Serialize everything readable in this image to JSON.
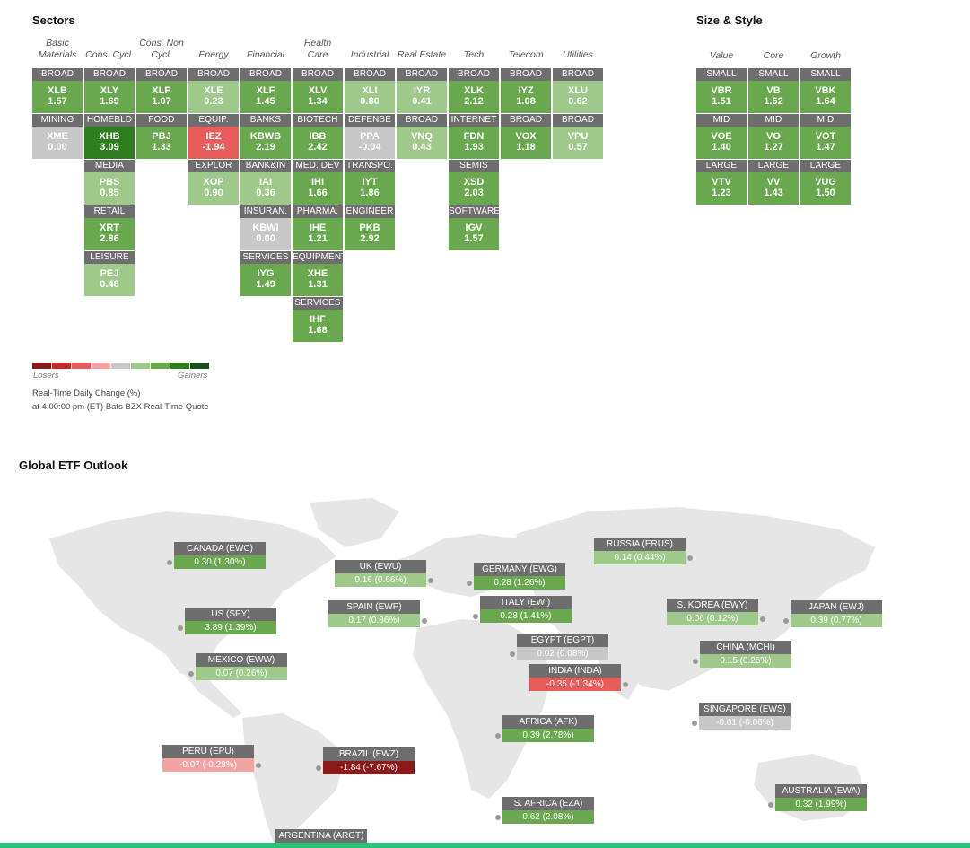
{
  "colors": {
    "dark_red": "#8b1a1a",
    "red": "#e85c5c",
    "light_red": "#f4a3a3",
    "neutral": "#c8c8c8",
    "light_green": "#9ec98a",
    "green": "#6aa84f",
    "dark_green": "#2e7d1e"
  },
  "sectors": {
    "title": "Sectors",
    "columns": [
      "Basic Materials",
      "Cons. Cycl.",
      "Cons. Non Cycl.",
      "Energy",
      "Financial",
      "Health Care",
      "Industrial",
      "Real Estate",
      "Tech",
      "Telecom",
      "Utilities"
    ],
    "tiles": [
      {
        "col": 0,
        "row": 0,
        "label": "BROAD",
        "ticker": "XLB",
        "value": "1.57",
        "color": "green"
      },
      {
        "col": 0,
        "row": 1,
        "label": "MINING",
        "ticker": "XME",
        "value": "0.00",
        "color": "neutral"
      },
      {
        "col": 1,
        "row": 0,
        "label": "BROAD",
        "ticker": "XLY",
        "value": "1.69",
        "color": "green"
      },
      {
        "col": 1,
        "row": 1,
        "label": "HOMEBLD",
        "ticker": "XHB",
        "value": "3.09",
        "color": "dark_green"
      },
      {
        "col": 1,
        "row": 2,
        "label": "MEDIA",
        "ticker": "PBS",
        "value": "0.85",
        "color": "light_green"
      },
      {
        "col": 1,
        "row": 3,
        "label": "RETAIL",
        "ticker": "XRT",
        "value": "2.86",
        "color": "green"
      },
      {
        "col": 1,
        "row": 4,
        "label": "LEISURE",
        "ticker": "PEJ",
        "value": "0.48",
        "color": "light_green"
      },
      {
        "col": 2,
        "row": 0,
        "label": "BROAD",
        "ticker": "XLP",
        "value": "1.07",
        "color": "green"
      },
      {
        "col": 2,
        "row": 1,
        "label": "FOOD",
        "ticker": "PBJ",
        "value": "1.33",
        "color": "green"
      },
      {
        "col": 3,
        "row": 0,
        "label": "BROAD",
        "ticker": "XLE",
        "value": "0.23",
        "color": "light_green"
      },
      {
        "col": 3,
        "row": 1,
        "label": "EQUIP.",
        "ticker": "IEZ",
        "value": "-1.94",
        "color": "red"
      },
      {
        "col": 3,
        "row": 2,
        "label": "EXPLOR",
        "ticker": "XOP",
        "value": "0.90",
        "color": "light_green"
      },
      {
        "col": 4,
        "row": 0,
        "label": "BROAD",
        "ticker": "XLF",
        "value": "1.45",
        "color": "green"
      },
      {
        "col": 4,
        "row": 1,
        "label": "BANKS",
        "ticker": "KBWB",
        "value": "2.19",
        "color": "green"
      },
      {
        "col": 4,
        "row": 2,
        "label": "BANK&IN",
        "ticker": "IAI",
        "value": "0.36",
        "color": "light_green"
      },
      {
        "col": 4,
        "row": 3,
        "label": "INSURAN.",
        "ticker": "KBWI",
        "value": "0.00",
        "color": "neutral"
      },
      {
        "col": 4,
        "row": 4,
        "label": "SERVICES",
        "ticker": "IYG",
        "value": "1.49",
        "color": "green"
      },
      {
        "col": 5,
        "row": 0,
        "label": "BROAD",
        "ticker": "XLV",
        "value": "1.34",
        "color": "green"
      },
      {
        "col": 5,
        "row": 1,
        "label": "BIOTECH",
        "ticker": "IBB",
        "value": "2.42",
        "color": "green"
      },
      {
        "col": 5,
        "row": 2,
        "label": "MED. DEV",
        "ticker": "IHI",
        "value": "1.66",
        "color": "green"
      },
      {
        "col": 5,
        "row": 3,
        "label": "PHARMA.",
        "ticker": "IHE",
        "value": "1.21",
        "color": "green"
      },
      {
        "col": 5,
        "row": 4,
        "label": "EQUIPMENT",
        "ticker": "XHE",
        "value": "1.31",
        "color": "green"
      },
      {
        "col": 5,
        "row": 5,
        "label": "SERVICES",
        "ticker": "IHF",
        "value": "1.68",
        "color": "green"
      },
      {
        "col": 6,
        "row": 0,
        "label": "BROAD",
        "ticker": "XLI",
        "value": "0.80",
        "color": "light_green"
      },
      {
        "col": 6,
        "row": 1,
        "label": "DEFENSE",
        "ticker": "PPA",
        "value": "-0.04",
        "color": "neutral"
      },
      {
        "col": 6,
        "row": 2,
        "label": "TRANSPO.",
        "ticker": "IYT",
        "value": "1.86",
        "color": "green"
      },
      {
        "col": 6,
        "row": 3,
        "label": "ENGINEER",
        "ticker": "PKB",
        "value": "2.92",
        "color": "green"
      },
      {
        "col": 7,
        "row": 0,
        "label": "BROAD",
        "ticker": "IYR",
        "value": "0.41",
        "color": "light_green"
      },
      {
        "col": 7,
        "row": 1,
        "label": "BROAD",
        "ticker": "VNQ",
        "value": "0.43",
        "color": "light_green"
      },
      {
        "col": 8,
        "row": 0,
        "label": "BROAD",
        "ticker": "XLK",
        "value": "2.12",
        "color": "green"
      },
      {
        "col": 8,
        "row": 1,
        "label": "INTERNET",
        "ticker": "FDN",
        "value": "1.93",
        "color": "green"
      },
      {
        "col": 8,
        "row": 2,
        "label": "SEMIS",
        "ticker": "XSD",
        "value": "2.03",
        "color": "green"
      },
      {
        "col": 8,
        "row": 3,
        "label": "SOFTWARE",
        "ticker": "IGV",
        "value": "1.57",
        "color": "green"
      },
      {
        "col": 9,
        "row": 0,
        "label": "BROAD",
        "ticker": "IYZ",
        "value": "1.08",
        "color": "green"
      },
      {
        "col": 9,
        "row": 1,
        "label": "BROAD",
        "ticker": "VOX",
        "value": "1.18",
        "color": "green"
      },
      {
        "col": 10,
        "row": 0,
        "label": "BROAD",
        "ticker": "XLU",
        "value": "0.62",
        "color": "light_green"
      },
      {
        "col": 10,
        "row": 1,
        "label": "BROAD",
        "ticker": "VPU",
        "value": "0.57",
        "color": "light_green"
      }
    ],
    "legend": {
      "colors": [
        "#8b1a1a",
        "#c62828",
        "#e85c5c",
        "#f4a3a3",
        "#c8c8c8",
        "#9ec98a",
        "#6aa84f",
        "#2e7d1e",
        "#1b4d1b"
      ],
      "losers": "Losers",
      "gainers": "Gainers"
    },
    "note_line1": "Real-Time Daily Change (%)",
    "note_line2": "at 4:00:00 pm (ET) Bats BZX Real-Time Quote"
  },
  "size_style": {
    "title": "Size & Style",
    "columns": [
      "Value",
      "Core",
      "Growth"
    ],
    "tiles": [
      {
        "col": 0,
        "row": 0,
        "label": "SMALL",
        "ticker": "VBR",
        "value": "1.51",
        "color": "green"
      },
      {
        "col": 1,
        "row": 0,
        "label": "SMALL",
        "ticker": "VB",
        "value": "1.62",
        "color": "green"
      },
      {
        "col": 2,
        "row": 0,
        "label": "SMALL",
        "ticker": "VBK",
        "value": "1.64",
        "color": "green"
      },
      {
        "col": 0,
        "row": 1,
        "label": "MID",
        "ticker": "VOE",
        "value": "1.40",
        "color": "green"
      },
      {
        "col": 1,
        "row": 1,
        "label": "MID",
        "ticker": "VO",
        "value": "1.27",
        "color": "green"
      },
      {
        "col": 2,
        "row": 1,
        "label": "MID",
        "ticker": "VOT",
        "value": "1.47",
        "color": "green"
      },
      {
        "col": 0,
        "row": 2,
        "label": "LARGE",
        "ticker": "VTV",
        "value": "1.23",
        "color": "green"
      },
      {
        "col": 1,
        "row": 2,
        "label": "LARGE",
        "ticker": "VV",
        "value": "1.43",
        "color": "green"
      },
      {
        "col": 2,
        "row": 2,
        "label": "LARGE",
        "ticker": "VUG",
        "value": "1.50",
        "color": "green"
      }
    ]
  },
  "global": {
    "title": "Global ETF Outlook",
    "markers": [
      {
        "label": "CANADA (EWC)",
        "value": "0.30 (1.30%)",
        "color": "green"
      },
      {
        "label": "US (SPY)",
        "value": "3.89 (1.39%)",
        "color": "green"
      },
      {
        "label": "MEXICO (EWW)",
        "value": "0.07 (0.26%)",
        "color": "light_green"
      },
      {
        "label": "PERU (EPU)",
        "value": "-0.07 (-0.28%)",
        "color": "light_red"
      },
      {
        "label": "BRAZIL (EWZ)",
        "value": "-1.84 (-7.67%)",
        "color": "dark_red"
      },
      {
        "label": "ARGENTINA (ARGT)",
        "value": "",
        "color": "neutral"
      },
      {
        "label": "UK (EWU)",
        "value": "0.16 (0.66%)",
        "color": "light_green"
      },
      {
        "label": "SPAIN (EWP)",
        "value": "0.17 (0.86%)",
        "color": "light_green"
      },
      {
        "label": "GERMANY (EWG)",
        "value": "0.28 (1.26%)",
        "color": "green"
      },
      {
        "label": "ITALY (EWI)",
        "value": "0.28 (1.41%)",
        "color": "green"
      },
      {
        "label": "EGYPT (EGPT)",
        "value": "0.02 (0.08%)",
        "color": "neutral"
      },
      {
        "label": "INDIA (INDA)",
        "value": "-0.35 (-1.34%)",
        "color": "red"
      },
      {
        "label": "AFRICA (AFK)",
        "value": "0.39 (2.78%)",
        "color": "green"
      },
      {
        "label": "S. AFRICA (EZA)",
        "value": "0.62 (2.08%)",
        "color": "green"
      },
      {
        "label": "RUSSIA (ERUS)",
        "value": "0.14 (0.44%)",
        "color": "light_green"
      },
      {
        "label": "S. KOREA (EWY)",
        "value": "0.06 (0.12%)",
        "color": "light_green"
      },
      {
        "label": "JAPAN (EWJ)",
        "value": "0.39 (0.77%)",
        "color": "light_green"
      },
      {
        "label": "CHINA (MCHI)",
        "value": "0.15 (0.25%)",
        "color": "light_green"
      },
      {
        "label": "SINGAPORE (EWS)",
        "value": "-0.01 (-0.06%)",
        "color": "neutral"
      },
      {
        "label": "AUSTRALIA (EWA)",
        "value": "0.32 (1.99%)",
        "color": "green"
      }
    ]
  }
}
